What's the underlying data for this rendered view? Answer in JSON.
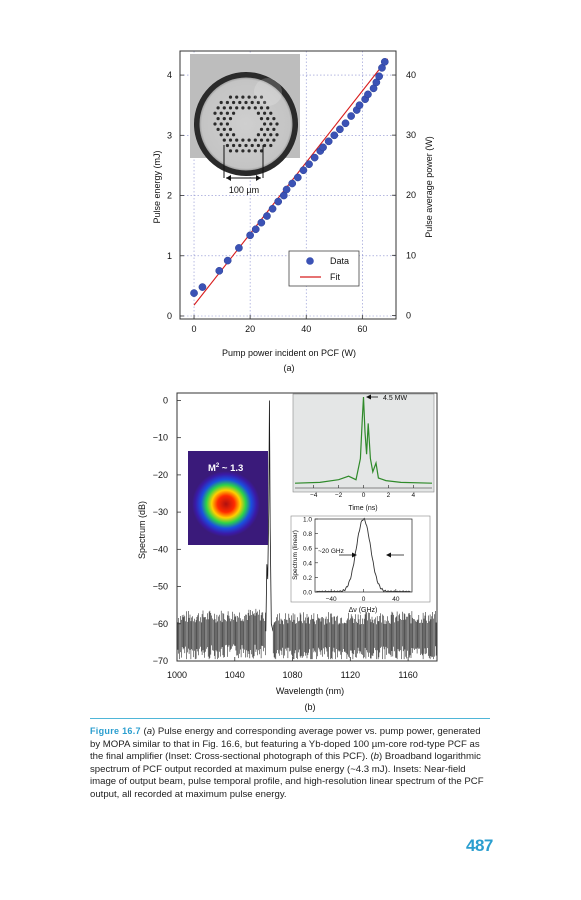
{
  "chart_data": [
    {
      "type": "scatter",
      "panel_label": "(a)",
      "xlabel": "Pump power incident on PCF (W)",
      "ylabel": "Pulse energy (mJ)",
      "y2label": "Pulse average power (W)",
      "xlim": [
        -5,
        72
      ],
      "ylim": [
        -0.05,
        4.4
      ],
      "y2lim": [
        -0.6,
        44
      ],
      "xticks": [
        0,
        20,
        40,
        60
      ],
      "yticks": [
        0,
        1,
        2,
        3,
        4
      ],
      "y2ticks": [
        0,
        10,
        20,
        30,
        40
      ],
      "series": [
        {
          "name": "Data",
          "x": [
            0,
            3,
            9,
            12,
            16,
            20,
            22,
            24,
            26,
            28,
            30,
            32,
            33,
            35,
            37,
            39,
            41,
            43,
            45,
            46,
            48,
            50,
            52,
            54,
            56,
            58,
            59,
            61,
            62,
            64,
            65,
            66,
            67,
            68
          ],
          "y": [
            0.38,
            0.48,
            0.75,
            0.92,
            1.13,
            1.34,
            1.44,
            1.55,
            1.66,
            1.78,
            1.9,
            2.0,
            2.1,
            2.2,
            2.3,
            2.42,
            2.52,
            2.63,
            2.74,
            2.8,
            2.9,
            3.0,
            3.1,
            3.2,
            3.32,
            3.42,
            3.5,
            3.6,
            3.68,
            3.78,
            3.88,
            3.98,
            4.12,
            4.22
          ]
        },
        {
          "name": "Fit",
          "x": [
            0,
            69
          ],
          "y": [
            0.18,
            4.27
          ]
        }
      ],
      "grid": true,
      "legend_position": "lower-right",
      "inset": {
        "type": "photograph",
        "label": "100 µm"
      }
    },
    {
      "type": "line",
      "panel_label": "(b)",
      "xlabel": "Wavelength (nm)",
      "ylabel": "Spectrum (dB)",
      "xlim": [
        1000,
        1180
      ],
      "ylim": [
        -70,
        2
      ],
      "xticks": [
        1000,
        1040,
        1080,
        1120,
        1160
      ],
      "yticks": [
        0,
        -10,
        -20,
        -30,
        -40,
        -50,
        -60,
        -70
      ],
      "peak": {
        "x": 1064,
        "y": 0
      },
      "noise_floor": -63,
      "insets": [
        {
          "type": "image",
          "label": "M² ~ 1.3"
        },
        {
          "type": "line",
          "xlabel": "Time (ns)",
          "xticks": [
            -4,
            -2,
            0,
            2,
            4
          ],
          "xlim": [
            -5.5,
            5.5
          ],
          "annotation": "4.5 MW"
        },
        {
          "type": "line",
          "xlabel": "Δν (GHz)",
          "ylabel": "Spectrum (linear)",
          "xlim": [
            -60,
            60
          ],
          "ylim": [
            0,
            1.0
          ],
          "xticks": [
            -40,
            0,
            40
          ],
          "yticks": [
            0.0,
            0.2,
            0.4,
            0.6,
            0.8,
            1.0
          ],
          "annotation": "~20 GHz"
        }
      ]
    }
  ],
  "text": {
    "legend_data": "Data",
    "legend_fit": "Fit",
    "scale_bar": "100 µm",
    "a_label": "(a)",
    "b_label": "(b)",
    "m2": "M",
    "m2_sup": "2",
    "m2_val": " ~ 1.3",
    "peak_annot": "4.5 MW",
    "fwhm_annot": "~20 GHz"
  },
  "caption": {
    "figure_label": "Figure 16.7",
    "part1": " (",
    "a_tag": "a",
    "part2": ") Pulse energy and corresponding average power vs. pump power, generated by MOPA similar to that in Fig. 16.6, but featuring a Yb-doped 100 µm-core rod-type PCF as the final amplifier (Inset: Cross-sectional photograph of this PCF). (",
    "b_tag": "b",
    "part3": ") Broadband logarithmic spectrum of PCF output recorded at maximum pulse energy (~4.3 mJ). Insets: Near-field image of output beam, pulse temporal profile, and high-resolution linear spectrum of the PCF output, all recorded at maximum pulse energy."
  },
  "page_number": "487"
}
